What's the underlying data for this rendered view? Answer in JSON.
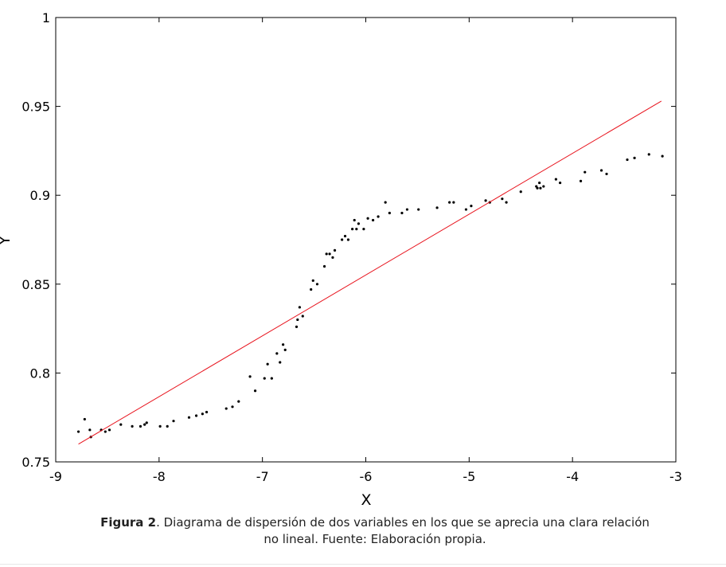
{
  "chart_data": {
    "type": "scatter",
    "xlabel": "X",
    "ylabel": "Y",
    "xlim": [
      -9,
      -3
    ],
    "ylim": [
      0.75,
      1
    ],
    "xticks": [
      -9,
      -8,
      -7,
      -6,
      -5,
      -4,
      -3
    ],
    "xtick_labels": [
      "-9",
      "-8",
      "-7",
      "-6",
      "-5",
      "-4",
      "-3"
    ],
    "yticks": [
      0.75,
      0.8,
      0.85,
      0.9,
      0.95,
      1
    ],
    "ytick_labels": [
      "0.75",
      "0.8",
      "0.85",
      "0.9",
      "0.95",
      "1"
    ],
    "grid": false,
    "series": [
      {
        "kind": "points",
        "color": "#000000",
        "points": [
          [
            -8.78,
            0.767
          ],
          [
            -8.72,
            0.774
          ],
          [
            -8.67,
            0.768
          ],
          [
            -8.66,
            0.764
          ],
          [
            -8.56,
            0.768
          ],
          [
            -8.52,
            0.767
          ],
          [
            -8.48,
            0.768
          ],
          [
            -8.37,
            0.771
          ],
          [
            -8.26,
            0.77
          ],
          [
            -8.18,
            0.77
          ],
          [
            -8.14,
            0.771
          ],
          [
            -8.12,
            0.772
          ],
          [
            -7.99,
            0.77
          ],
          [
            -7.92,
            0.77
          ],
          [
            -7.86,
            0.773
          ],
          [
            -7.71,
            0.775
          ],
          [
            -7.64,
            0.776
          ],
          [
            -7.58,
            0.777
          ],
          [
            -7.54,
            0.778
          ],
          [
            -7.35,
            0.78
          ],
          [
            -7.29,
            0.781
          ],
          [
            -7.23,
            0.784
          ],
          [
            -7.12,
            0.798
          ],
          [
            -7.07,
            0.79
          ],
          [
            -6.98,
            0.797
          ],
          [
            -6.95,
            0.805
          ],
          [
            -6.91,
            0.797
          ],
          [
            -6.86,
            0.811
          ],
          [
            -6.83,
            0.806
          ],
          [
            -6.8,
            0.816
          ],
          [
            -6.78,
            0.813
          ],
          [
            -6.67,
            0.826
          ],
          [
            -6.66,
            0.83
          ],
          [
            -6.64,
            0.837
          ],
          [
            -6.61,
            0.832
          ],
          [
            -6.53,
            0.847
          ],
          [
            -6.51,
            0.852
          ],
          [
            -6.47,
            0.85
          ],
          [
            -6.4,
            0.86
          ],
          [
            -6.38,
            0.867
          ],
          [
            -6.35,
            0.867
          ],
          [
            -6.32,
            0.865
          ],
          [
            -6.3,
            0.869
          ],
          [
            -6.23,
            0.875
          ],
          [
            -6.2,
            0.877
          ],
          [
            -6.17,
            0.875
          ],
          [
            -6.13,
            0.881
          ],
          [
            -6.11,
            0.886
          ],
          [
            -6.09,
            0.881
          ],
          [
            -6.07,
            0.884
          ],
          [
            -6.02,
            0.881
          ],
          [
            -5.98,
            0.887
          ],
          [
            -5.93,
            0.886
          ],
          [
            -5.88,
            0.888
          ],
          [
            -5.81,
            0.896
          ],
          [
            -5.77,
            0.89
          ],
          [
            -5.65,
            0.89
          ],
          [
            -5.6,
            0.892
          ],
          [
            -5.49,
            0.892
          ],
          [
            -5.31,
            0.893
          ],
          [
            -5.19,
            0.896
          ],
          [
            -5.15,
            0.896
          ],
          [
            -5.03,
            0.892
          ],
          [
            -4.98,
            0.894
          ],
          [
            -4.84,
            0.897
          ],
          [
            -4.8,
            0.896
          ],
          [
            -4.68,
            0.898
          ],
          [
            -4.64,
            0.896
          ],
          [
            -4.5,
            0.902
          ],
          [
            -4.35,
            0.905
          ],
          [
            -4.34,
            0.904
          ],
          [
            -4.32,
            0.907
          ],
          [
            -4.31,
            0.904
          ],
          [
            -4.28,
            0.905
          ],
          [
            -4.16,
            0.909
          ],
          [
            -4.12,
            0.907
          ],
          [
            -3.92,
            0.908
          ],
          [
            -3.88,
            0.913
          ],
          [
            -3.72,
            0.914
          ],
          [
            -3.67,
            0.912
          ],
          [
            -3.47,
            0.92
          ],
          [
            -3.4,
            0.921
          ],
          [
            -3.26,
            0.923
          ],
          [
            -3.13,
            0.922
          ]
        ]
      },
      {
        "kind": "line",
        "color": "#e8141e",
        "points": [
          [
            -8.78,
            0.76
          ],
          [
            -3.14,
            0.953
          ]
        ]
      }
    ]
  },
  "caption": {
    "figure_label": "Figura 2",
    "line1": ". Diagrama de dispersión de dos variables en los que se aprecia una clara relación",
    "line2": "no lineal. Fuente: Elaboración propia."
  }
}
